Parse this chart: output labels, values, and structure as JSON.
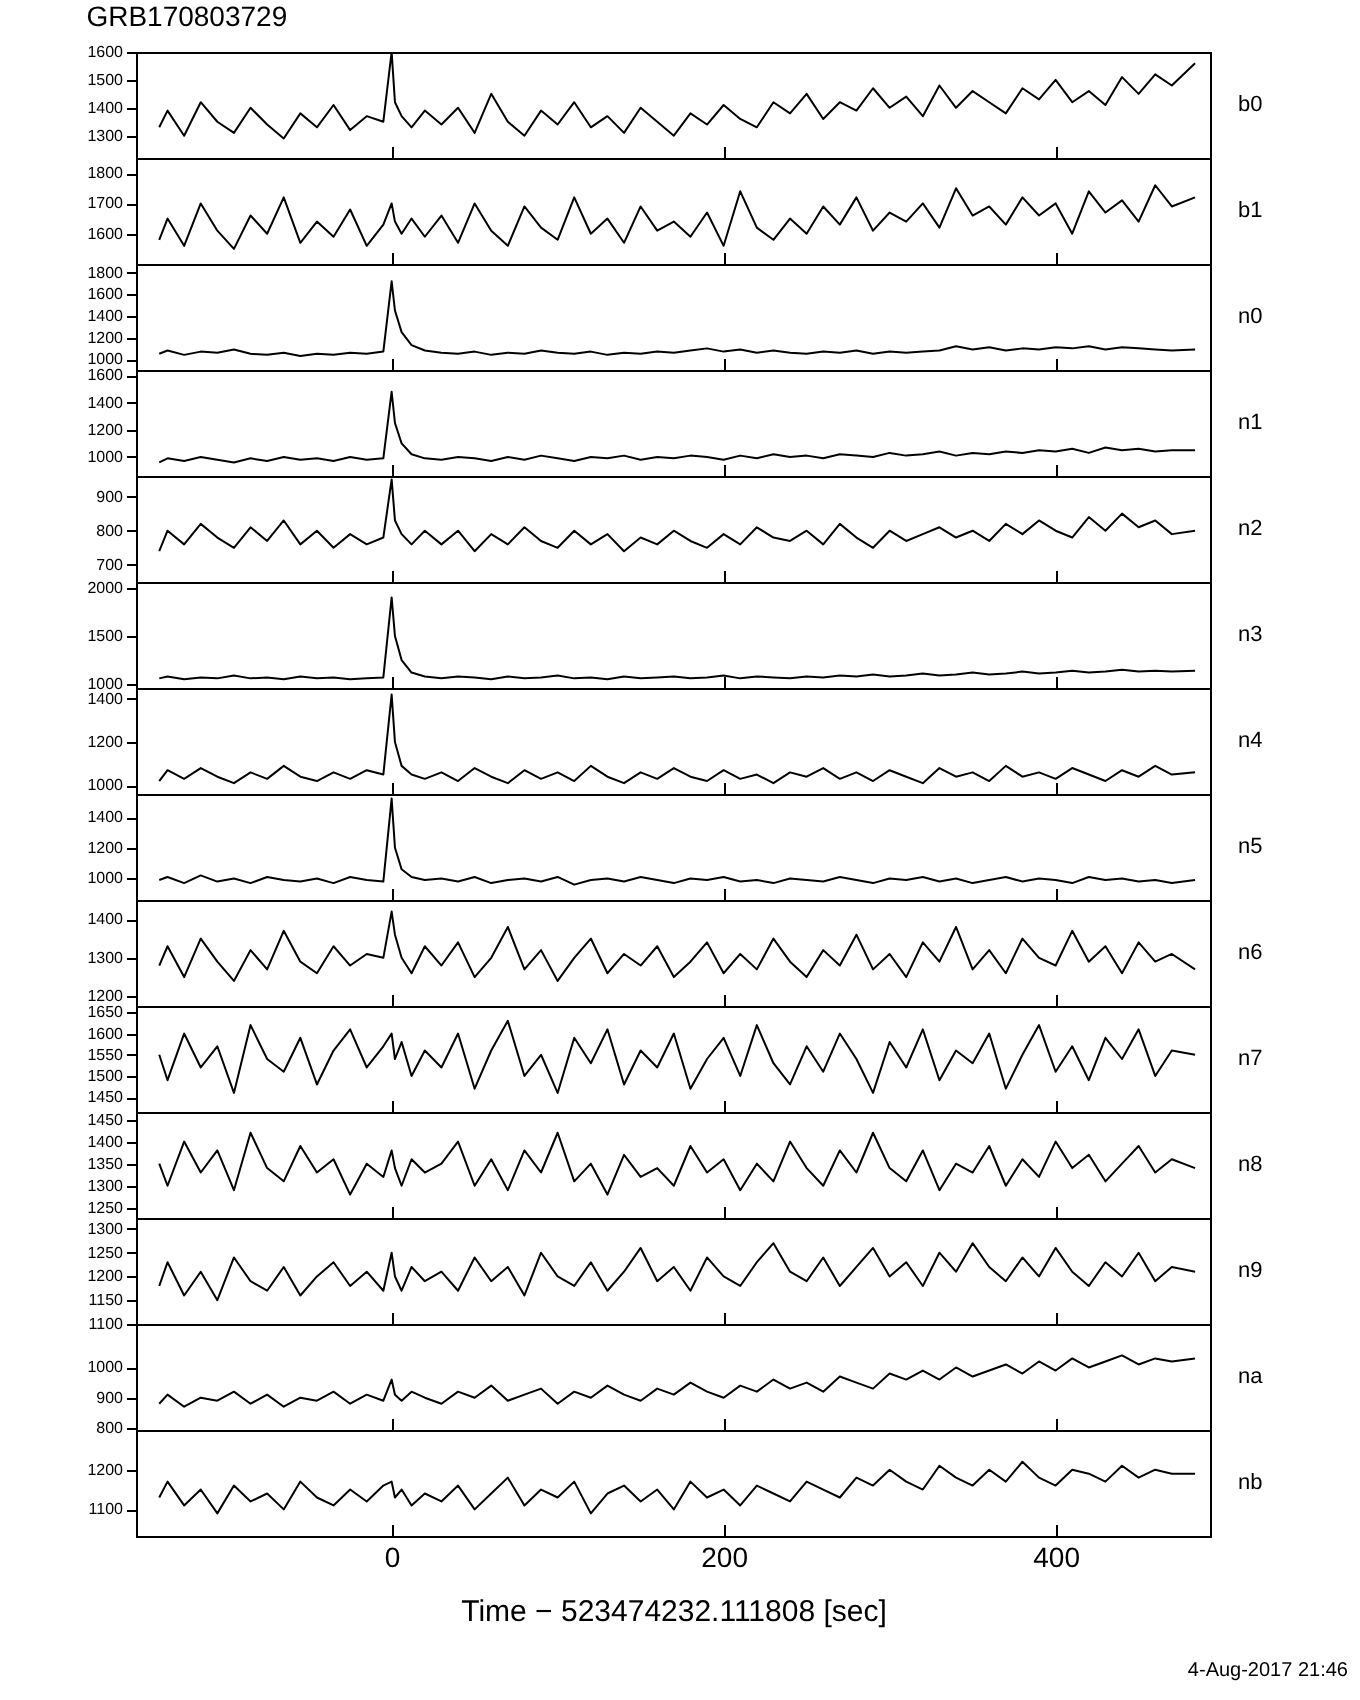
{
  "chart_data": [
    {
      "type": "line",
      "title": "GRB170803729",
      "x": [
        -140,
        -135,
        -125,
        -115,
        -105,
        -95,
        -85,
        -75,
        -65,
        -55,
        -45,
        -35,
        -25,
        -15,
        -5,
        0,
        2,
        6,
        12,
        20,
        30,
        40,
        50,
        60,
        70,
        80,
        90,
        100,
        110,
        120,
        130,
        140,
        150,
        160,
        170,
        180,
        190,
        200,
        210,
        220,
        230,
        240,
        250,
        260,
        270,
        280,
        290,
        300,
        310,
        320,
        330,
        340,
        350,
        360,
        370,
        380,
        390,
        400,
        410,
        420,
        430,
        440,
        450,
        460,
        470,
        484
      ],
      "xlim": [
        -154,
        493
      ],
      "xticks": [
        0,
        200,
        400
      ],
      "ylim": [
        1220,
        1600
      ],
      "yticks": [
        1300,
        1400,
        1500,
        1600
      ],
      "tick_labels": "y",
      "series": [
        {
          "name": "b0",
          "color": "#000000",
          "values": [
            1330,
            1390,
            1300,
            1420,
            1350,
            1310,
            1400,
            1340,
            1290,
            1380,
            1330,
            1410,
            1320,
            1370,
            1350,
            1600,
            1420,
            1370,
            1330,
            1390,
            1340,
            1400,
            1310,
            1450,
            1350,
            1300,
            1390,
            1340,
            1420,
            1330,
            1370,
            1310,
            1400,
            1350,
            1300,
            1380,
            1340,
            1410,
            1360,
            1330,
            1420,
            1380,
            1450,
            1360,
            1420,
            1390,
            1470,
            1400,
            1440,
            1370,
            1480,
            1400,
            1460,
            1420,
            1380,
            1470,
            1430,
            1500,
            1420,
            1460,
            1410,
            1510,
            1450,
            1520,
            1480,
            1560
          ]
        }
      ]
    },
    {
      "type": "line",
      "x": [
        -140,
        -135,
        -125,
        -115,
        -105,
        -95,
        -85,
        -75,
        -65,
        -55,
        -45,
        -35,
        -25,
        -15,
        -5,
        0,
        2,
        6,
        12,
        20,
        30,
        40,
        50,
        60,
        70,
        80,
        90,
        100,
        110,
        120,
        130,
        140,
        150,
        160,
        170,
        180,
        190,
        200,
        210,
        220,
        230,
        240,
        250,
        260,
        270,
        280,
        290,
        300,
        310,
        320,
        330,
        340,
        350,
        360,
        370,
        380,
        390,
        400,
        410,
        420,
        430,
        440,
        450,
        460,
        470,
        484
      ],
      "xlim": [
        -154,
        493
      ],
      "xticks": [
        0,
        200,
        400
      ],
      "ylim": [
        1500,
        1850
      ],
      "yticks": [
        1600,
        1700,
        1800
      ],
      "tick_labels": "y",
      "series": [
        {
          "name": "b1",
          "color": "#000000",
          "values": [
            1580,
            1650,
            1560,
            1700,
            1610,
            1550,
            1660,
            1600,
            1720,
            1570,
            1640,
            1590,
            1680,
            1560,
            1630,
            1700,
            1640,
            1600,
            1650,
            1590,
            1660,
            1570,
            1700,
            1610,
            1560,
            1690,
            1620,
            1580,
            1720,
            1600,
            1650,
            1570,
            1690,
            1610,
            1640,
            1590,
            1670,
            1560,
            1740,
            1620,
            1580,
            1650,
            1600,
            1690,
            1630,
            1720,
            1610,
            1670,
            1640,
            1700,
            1620,
            1750,
            1660,
            1690,
            1630,
            1720,
            1660,
            1700,
            1600,
            1740,
            1670,
            1710,
            1640,
            1760,
            1690,
            1720
          ]
        }
      ]
    },
    {
      "type": "line",
      "x": [
        -140,
        -135,
        -125,
        -115,
        -105,
        -95,
        -85,
        -75,
        -65,
        -55,
        -45,
        -35,
        -25,
        -15,
        -5,
        0,
        2,
        6,
        12,
        20,
        30,
        40,
        50,
        60,
        70,
        80,
        90,
        100,
        110,
        120,
        130,
        140,
        150,
        160,
        170,
        180,
        190,
        200,
        210,
        220,
        230,
        240,
        250,
        260,
        270,
        280,
        290,
        300,
        310,
        320,
        330,
        340,
        350,
        360,
        370,
        380,
        390,
        400,
        410,
        420,
        430,
        440,
        450,
        460,
        470,
        484
      ],
      "xlim": [
        -154,
        493
      ],
      "xticks": [
        0,
        200,
        400
      ],
      "ylim": [
        900,
        1880
      ],
      "yticks": [
        1000,
        1200,
        1400,
        1600,
        1800
      ],
      "tick_labels": "y",
      "series": [
        {
          "name": "n0",
          "color": "#000000",
          "values": [
            1050,
            1080,
            1040,
            1070,
            1060,
            1090,
            1050,
            1040,
            1060,
            1030,
            1050,
            1040,
            1060,
            1050,
            1070,
            1720,
            1450,
            1250,
            1130,
            1080,
            1060,
            1050,
            1070,
            1040,
            1060,
            1050,
            1080,
            1060,
            1050,
            1070,
            1040,
            1060,
            1050,
            1070,
            1060,
            1080,
            1100,
            1070,
            1090,
            1060,
            1080,
            1060,
            1050,
            1070,
            1060,
            1080,
            1050,
            1070,
            1060,
            1070,
            1080,
            1120,
            1090,
            1110,
            1080,
            1100,
            1090,
            1110,
            1100,
            1120,
            1090,
            1110,
            1100,
            1090,
            1080,
            1090
          ]
        }
      ]
    },
    {
      "type": "line",
      "x": [
        -140,
        -135,
        -125,
        -115,
        -105,
        -95,
        -85,
        -75,
        -65,
        -55,
        -45,
        -35,
        -25,
        -15,
        -5,
        0,
        2,
        6,
        12,
        20,
        30,
        40,
        50,
        60,
        70,
        80,
        90,
        100,
        110,
        120,
        130,
        140,
        150,
        160,
        170,
        180,
        190,
        200,
        210,
        220,
        230,
        240,
        250,
        260,
        270,
        280,
        290,
        300,
        310,
        320,
        330,
        340,
        350,
        360,
        370,
        380,
        390,
        400,
        410,
        420,
        430,
        440,
        450,
        460,
        470,
        484
      ],
      "xlim": [
        -154,
        493
      ],
      "xticks": [
        0,
        200,
        400
      ],
      "ylim": [
        860,
        1640
      ],
      "yticks": [
        1000,
        1200,
        1400,
        1600
      ],
      "tick_labels": "y",
      "series": [
        {
          "name": "n1",
          "color": "#000000",
          "values": [
            960,
            990,
            970,
            1000,
            980,
            960,
            990,
            970,
            1000,
            980,
            990,
            970,
            1000,
            980,
            990,
            1480,
            1250,
            1100,
            1020,
            990,
            980,
            1000,
            990,
            970,
            1000,
            980,
            1010,
            990,
            970,
            1000,
            990,
            1010,
            980,
            1000,
            990,
            1010,
            1000,
            980,
            1010,
            990,
            1020,
            1000,
            1010,
            990,
            1020,
            1010,
            1000,
            1030,
            1010,
            1020,
            1040,
            1010,
            1030,
            1020,
            1040,
            1030,
            1050,
            1040,
            1060,
            1030,
            1070,
            1050,
            1060,
            1040,
            1050,
            1050
          ]
        }
      ]
    },
    {
      "type": "line",
      "x": [
        -140,
        -135,
        -125,
        -115,
        -105,
        -95,
        -85,
        -75,
        -65,
        -55,
        -45,
        -35,
        -25,
        -15,
        -5,
        0,
        2,
        6,
        12,
        20,
        30,
        40,
        50,
        60,
        70,
        80,
        90,
        100,
        110,
        120,
        130,
        140,
        150,
        160,
        170,
        180,
        190,
        200,
        210,
        220,
        230,
        240,
        250,
        260,
        270,
        280,
        290,
        300,
        310,
        320,
        330,
        340,
        350,
        360,
        370,
        380,
        390,
        400,
        410,
        420,
        430,
        440,
        450,
        460,
        470,
        484
      ],
      "xlim": [
        -154,
        493
      ],
      "xticks": [
        0,
        200,
        400
      ],
      "ylim": [
        650,
        960
      ],
      "yticks": [
        700,
        800,
        900
      ],
      "tick_labels": "y",
      "series": [
        {
          "name": "n2",
          "color": "#000000",
          "values": [
            740,
            800,
            760,
            820,
            780,
            750,
            810,
            770,
            830,
            760,
            800,
            750,
            790,
            760,
            780,
            950,
            830,
            790,
            760,
            800,
            760,
            800,
            740,
            790,
            760,
            810,
            770,
            750,
            800,
            760,
            790,
            740,
            780,
            760,
            800,
            770,
            750,
            790,
            760,
            810,
            780,
            770,
            800,
            760,
            820,
            780,
            750,
            800,
            770,
            790,
            810,
            780,
            800,
            770,
            820,
            790,
            830,
            800,
            780,
            840,
            800,
            850,
            810,
            830,
            790,
            800
          ]
        }
      ]
    },
    {
      "type": "line",
      "x": [
        -140,
        -135,
        -125,
        -115,
        -105,
        -95,
        -85,
        -75,
        -65,
        -55,
        -45,
        -35,
        -25,
        -15,
        -5,
        0,
        2,
        6,
        12,
        20,
        30,
        40,
        50,
        60,
        70,
        80,
        90,
        100,
        110,
        120,
        130,
        140,
        150,
        160,
        170,
        180,
        190,
        200,
        210,
        220,
        230,
        240,
        250,
        260,
        270,
        280,
        290,
        300,
        310,
        320,
        330,
        340,
        350,
        360,
        370,
        380,
        390,
        400,
        410,
        420,
        430,
        440,
        450,
        460,
        470,
        484
      ],
      "xlim": [
        -154,
        493
      ],
      "xticks": [
        0,
        200,
        400
      ],
      "ylim": [
        960,
        2060
      ],
      "yticks": [
        1000,
        1500,
        2000
      ],
      "tick_labels": "y",
      "series": [
        {
          "name": "n3",
          "color": "#000000",
          "values": [
            1060,
            1080,
            1050,
            1070,
            1060,
            1090,
            1060,
            1070,
            1050,
            1080,
            1060,
            1070,
            1050,
            1060,
            1070,
            1900,
            1500,
            1250,
            1120,
            1080,
            1060,
            1080,
            1070,
            1050,
            1080,
            1060,
            1070,
            1090,
            1060,
            1070,
            1050,
            1080,
            1060,
            1070,
            1080,
            1060,
            1070,
            1090,
            1060,
            1080,
            1070,
            1060,
            1080,
            1070,
            1090,
            1080,
            1100,
            1080,
            1090,
            1110,
            1090,
            1100,
            1120,
            1100,
            1110,
            1130,
            1110,
            1120,
            1140,
            1120,
            1130,
            1150,
            1130,
            1140,
            1130,
            1140
          ]
        }
      ]
    },
    {
      "type": "line",
      "x": [
        -140,
        -135,
        -125,
        -115,
        -105,
        -95,
        -85,
        -75,
        -65,
        -55,
        -45,
        -35,
        -25,
        -15,
        -5,
        0,
        2,
        6,
        12,
        20,
        30,
        40,
        50,
        60,
        70,
        80,
        90,
        100,
        110,
        120,
        130,
        140,
        150,
        160,
        170,
        180,
        190,
        200,
        210,
        220,
        230,
        240,
        250,
        260,
        270,
        280,
        290,
        300,
        310,
        320,
        330,
        340,
        350,
        360,
        370,
        380,
        390,
        400,
        410,
        420,
        430,
        440,
        450,
        460,
        470,
        484
      ],
      "xlim": [
        -154,
        493
      ],
      "xticks": [
        0,
        200,
        400
      ],
      "ylim": [
        960,
        1450
      ],
      "yticks": [
        1000,
        1200,
        1400
      ],
      "tick_labels": "y",
      "series": [
        {
          "name": "n4",
          "color": "#000000",
          "values": [
            1020,
            1070,
            1030,
            1080,
            1040,
            1010,
            1060,
            1030,
            1090,
            1040,
            1020,
            1060,
            1030,
            1070,
            1050,
            1420,
            1200,
            1090,
            1050,
            1030,
            1060,
            1020,
            1080,
            1040,
            1010,
            1070,
            1030,
            1060,
            1020,
            1090,
            1040,
            1010,
            1060,
            1030,
            1080,
            1040,
            1020,
            1070,
            1030,
            1050,
            1010,
            1060,
            1040,
            1080,
            1030,
            1060,
            1020,
            1070,
            1040,
            1010,
            1080,
            1040,
            1060,
            1020,
            1090,
            1040,
            1060,
            1030,
            1080,
            1050,
            1020,
            1070,
            1040,
            1090,
            1050,
            1060
          ]
        }
      ]
    },
    {
      "type": "line",
      "x": [
        -140,
        -135,
        -125,
        -115,
        -105,
        -95,
        -85,
        -75,
        -65,
        -55,
        -45,
        -35,
        -25,
        -15,
        -5,
        0,
        2,
        6,
        12,
        20,
        30,
        40,
        50,
        60,
        70,
        80,
        90,
        100,
        110,
        120,
        130,
        140,
        150,
        160,
        170,
        180,
        190,
        200,
        210,
        220,
        230,
        240,
        250,
        260,
        270,
        280,
        290,
        300,
        310,
        320,
        330,
        340,
        350,
        360,
        370,
        380,
        390,
        400,
        410,
        420,
        430,
        440,
        450,
        460,
        470,
        484
      ],
      "xlim": [
        -154,
        493
      ],
      "xticks": [
        0,
        200,
        400
      ],
      "ylim": [
        860,
        1550
      ],
      "yticks": [
        1000,
        1200,
        1400
      ],
      "tick_labels": "y",
      "series": [
        {
          "name": "n5",
          "color": "#000000",
          "values": [
            990,
            1010,
            970,
            1020,
            980,
            1000,
            970,
            1010,
            990,
            980,
            1000,
            970,
            1010,
            990,
            980,
            1520,
            1200,
            1060,
            1010,
            990,
            1000,
            980,
            1010,
            970,
            990,
            1000,
            980,
            1010,
            960,
            990,
            1000,
            980,
            1010,
            990,
            970,
            1000,
            990,
            1010,
            980,
            990,
            970,
            1000,
            990,
            980,
            1010,
            990,
            970,
            1000,
            990,
            1010,
            980,
            1000,
            970,
            990,
            1010,
            980,
            1000,
            990,
            970,
            1010,
            990,
            1000,
            980,
            990,
            970,
            990
          ]
        }
      ]
    },
    {
      "type": "line",
      "x": [
        -140,
        -135,
        -125,
        -115,
        -105,
        -95,
        -85,
        -75,
        -65,
        -55,
        -45,
        -35,
        -25,
        -15,
        -5,
        0,
        2,
        6,
        12,
        20,
        30,
        40,
        50,
        60,
        70,
        80,
        90,
        100,
        110,
        120,
        130,
        140,
        150,
        160,
        170,
        180,
        190,
        200,
        210,
        220,
        230,
        240,
        250,
        260,
        270,
        280,
        290,
        300,
        310,
        320,
        330,
        340,
        350,
        360,
        370,
        380,
        390,
        400,
        410,
        420,
        430,
        440,
        450,
        460,
        470,
        484
      ],
      "xlim": [
        -154,
        493
      ],
      "xticks": [
        0,
        200,
        400
      ],
      "ylim": [
        1175,
        1450
      ],
      "yticks": [
        1200,
        1300,
        1400
      ],
      "tick_labels": "y",
      "series": [
        {
          "name": "n6",
          "color": "#000000",
          "values": [
            1280,
            1330,
            1250,
            1350,
            1290,
            1240,
            1320,
            1270,
            1370,
            1290,
            1260,
            1330,
            1280,
            1310,
            1300,
            1420,
            1360,
            1300,
            1260,
            1330,
            1280,
            1340,
            1250,
            1300,
            1380,
            1270,
            1320,
            1240,
            1300,
            1350,
            1260,
            1310,
            1280,
            1330,
            1250,
            1290,
            1340,
            1260,
            1310,
            1270,
            1350,
            1290,
            1250,
            1320,
            1280,
            1360,
            1270,
            1310,
            1250,
            1340,
            1290,
            1380,
            1270,
            1320,
            1260,
            1350,
            1300,
            1280,
            1370,
            1290,
            1330,
            1260,
            1340,
            1290,
            1310,
            1270
          ]
        }
      ]
    },
    {
      "type": "line",
      "x": [
        -140,
        -135,
        -125,
        -115,
        -105,
        -95,
        -85,
        -75,
        -65,
        -55,
        -45,
        -35,
        -25,
        -15,
        -5,
        0,
        2,
        6,
        12,
        20,
        30,
        40,
        50,
        60,
        70,
        80,
        90,
        100,
        110,
        120,
        130,
        140,
        150,
        160,
        170,
        180,
        190,
        200,
        210,
        220,
        230,
        240,
        250,
        260,
        270,
        280,
        290,
        300,
        310,
        320,
        330,
        340,
        350,
        360,
        370,
        380,
        390,
        400,
        410,
        420,
        430,
        440,
        450,
        460,
        470,
        484
      ],
      "xlim": [
        -154,
        493
      ],
      "xticks": [
        0,
        200,
        400
      ],
      "ylim": [
        1415,
        1665
      ],
      "yticks": [
        1450,
        1500,
        1550,
        1600,
        1650
      ],
      "tick_labels": "y",
      "series": [
        {
          "name": "n7",
          "color": "#000000",
          "values": [
            1550,
            1490,
            1600,
            1520,
            1570,
            1460,
            1620,
            1540,
            1510,
            1590,
            1480,
            1560,
            1610,
            1520,
            1570,
            1600,
            1540,
            1580,
            1500,
            1560,
            1520,
            1600,
            1470,
            1560,
            1630,
            1500,
            1550,
            1460,
            1590,
            1530,
            1610,
            1480,
            1560,
            1520,
            1600,
            1470,
            1540,
            1590,
            1500,
            1620,
            1530,
            1480,
            1570,
            1510,
            1600,
            1540,
            1460,
            1580,
            1520,
            1610,
            1490,
            1560,
            1530,
            1600,
            1470,
            1550,
            1620,
            1510,
            1570,
            1490,
            1590,
            1540,
            1610,
            1500,
            1560,
            1550
          ]
        }
      ]
    },
    {
      "type": "line",
      "x": [
        -140,
        -135,
        -125,
        -115,
        -105,
        -95,
        -85,
        -75,
        -65,
        -55,
        -45,
        -35,
        -25,
        -15,
        -5,
        0,
        2,
        6,
        12,
        20,
        30,
        40,
        50,
        60,
        70,
        80,
        90,
        100,
        110,
        120,
        130,
        140,
        150,
        160,
        170,
        180,
        190,
        200,
        210,
        220,
        230,
        240,
        250,
        260,
        270,
        280,
        290,
        300,
        310,
        320,
        330,
        340,
        350,
        360,
        370,
        380,
        390,
        400,
        410,
        420,
        430,
        440,
        450,
        460,
        470,
        484
      ],
      "xlim": [
        -154,
        493
      ],
      "xticks": [
        0,
        200,
        400
      ],
      "ylim": [
        1227,
        1467
      ],
      "yticks": [
        1250,
        1300,
        1350,
        1400,
        1450
      ],
      "tick_labels": "y",
      "series": [
        {
          "name": "n8",
          "color": "#000000",
          "values": [
            1350,
            1300,
            1400,
            1330,
            1380,
            1290,
            1420,
            1340,
            1310,
            1390,
            1330,
            1360,
            1280,
            1350,
            1320,
            1380,
            1340,
            1300,
            1360,
            1330,
            1350,
            1400,
            1300,
            1360,
            1290,
            1380,
            1330,
            1420,
            1310,
            1350,
            1280,
            1370,
            1320,
            1340,
            1300,
            1390,
            1330,
            1360,
            1290,
            1350,
            1310,
            1400,
            1340,
            1300,
            1380,
            1330,
            1420,
            1340,
            1310,
            1380,
            1290,
            1350,
            1330,
            1390,
            1300,
            1360,
            1320,
            1400,
            1340,
            1370,
            1310,
            1350,
            1390,
            1330,
            1360,
            1340
          ]
        }
      ]
    },
    {
      "type": "line",
      "x": [
        -140,
        -135,
        -125,
        -115,
        -105,
        -95,
        -85,
        -75,
        -65,
        -55,
        -45,
        -35,
        -25,
        -15,
        -5,
        0,
        2,
        6,
        12,
        20,
        30,
        40,
        50,
        60,
        70,
        80,
        90,
        100,
        110,
        120,
        130,
        140,
        150,
        160,
        170,
        180,
        190,
        200,
        210,
        220,
        230,
        240,
        250,
        260,
        270,
        280,
        290,
        300,
        310,
        320,
        330,
        340,
        350,
        360,
        370,
        380,
        390,
        400,
        410,
        420,
        430,
        440,
        450,
        460,
        470,
        484
      ],
      "xlim": [
        -154,
        493
      ],
      "xticks": [
        0,
        200,
        400
      ],
      "ylim": [
        1100,
        1323
      ],
      "yticks": [
        1100,
        1150,
        1200,
        1250,
        1300
      ],
      "tick_labels": "y",
      "series": [
        {
          "name": "n9",
          "color": "#000000",
          "values": [
            1180,
            1230,
            1160,
            1210,
            1150,
            1240,
            1190,
            1170,
            1220,
            1160,
            1200,
            1230,
            1180,
            1210,
            1170,
            1250,
            1200,
            1170,
            1220,
            1190,
            1210,
            1170,
            1240,
            1190,
            1220,
            1160,
            1250,
            1200,
            1180,
            1230,
            1170,
            1210,
            1260,
            1190,
            1220,
            1170,
            1240,
            1200,
            1180,
            1230,
            1270,
            1210,
            1190,
            1240,
            1180,
            1220,
            1260,
            1200,
            1230,
            1180,
            1250,
            1210,
            1270,
            1220,
            1190,
            1240,
            1200,
            1260,
            1210,
            1180,
            1230,
            1200,
            1250,
            1190,
            1220,
            1210
          ]
        }
      ]
    },
    {
      "type": "line",
      "x": [
        -140,
        -135,
        -125,
        -115,
        -105,
        -95,
        -85,
        -75,
        -65,
        -55,
        -45,
        -35,
        -25,
        -15,
        -5,
        0,
        2,
        6,
        12,
        20,
        30,
        40,
        50,
        60,
        70,
        80,
        90,
        100,
        110,
        120,
        130,
        140,
        150,
        160,
        170,
        180,
        190,
        200,
        210,
        220,
        230,
        240,
        250,
        260,
        270,
        280,
        290,
        300,
        310,
        320,
        330,
        340,
        350,
        360,
        370,
        380,
        390,
        400,
        410,
        420,
        430,
        440,
        450,
        460,
        470,
        484
      ],
      "xlim": [
        -154,
        493
      ],
      "xticks": [
        0,
        200,
        400
      ],
      "ylim": [
        793,
        1144
      ],
      "yticks": [
        800,
        900,
        1000
      ],
      "tick_labels": "y",
      "series": [
        {
          "name": "na",
          "color": "#000000",
          "values": [
            880,
            910,
            870,
            900,
            890,
            920,
            880,
            910,
            870,
            900,
            890,
            920,
            880,
            910,
            890,
            960,
            910,
            890,
            920,
            900,
            880,
            920,
            900,
            940,
            890,
            910,
            930,
            880,
            920,
            900,
            940,
            910,
            890,
            930,
            910,
            950,
            920,
            900,
            940,
            920,
            960,
            930,
            950,
            920,
            970,
            950,
            930,
            980,
            960,
            990,
            960,
            1000,
            970,
            990,
            1010,
            980,
            1020,
            990,
            1030,
            1000,
            1020,
            1040,
            1010,
            1030,
            1020,
            1030
          ]
        }
      ]
    },
    {
      "type": "line",
      "xlabel": "Time − 523474232.111808 [sec]",
      "annotations": [
        "4-Aug-2017 21:46"
      ],
      "x": [
        -140,
        -135,
        -125,
        -115,
        -105,
        -95,
        -85,
        -75,
        -65,
        -55,
        -45,
        -35,
        -25,
        -15,
        -5,
        0,
        2,
        6,
        12,
        20,
        30,
        40,
        50,
        60,
        70,
        80,
        90,
        100,
        110,
        120,
        130,
        140,
        150,
        160,
        170,
        180,
        190,
        200,
        210,
        220,
        230,
        240,
        250,
        260,
        270,
        280,
        290,
        300,
        310,
        320,
        330,
        340,
        350,
        360,
        370,
        380,
        390,
        400,
        410,
        420,
        430,
        440,
        450,
        460,
        470,
        484
      ],
      "xlim": [
        -154,
        493
      ],
      "xticks": [
        0,
        200,
        400
      ],
      "ylim": [
        1033,
        1300
      ],
      "yticks": [
        1100,
        1200
      ],
      "series": [
        {
          "name": "nb",
          "color": "#000000",
          "values": [
            1130,
            1170,
            1110,
            1150,
            1090,
            1160,
            1120,
            1140,
            1100,
            1170,
            1130,
            1110,
            1150,
            1120,
            1160,
            1170,
            1130,
            1150,
            1110,
            1140,
            1120,
            1160,
            1100,
            1140,
            1180,
            1110,
            1150,
            1130,
            1170,
            1090,
            1140,
            1160,
            1120,
            1150,
            1100,
            1170,
            1130,
            1150,
            1110,
            1160,
            1140,
            1120,
            1170,
            1150,
            1130,
            1180,
            1160,
            1200,
            1170,
            1150,
            1210,
            1180,
            1160,
            1200,
            1170,
            1220,
            1180,
            1160,
            1200,
            1190,
            1170,
            1210,
            1180,
            1200,
            1190,
            1190
          ]
        }
      ]
    }
  ]
}
